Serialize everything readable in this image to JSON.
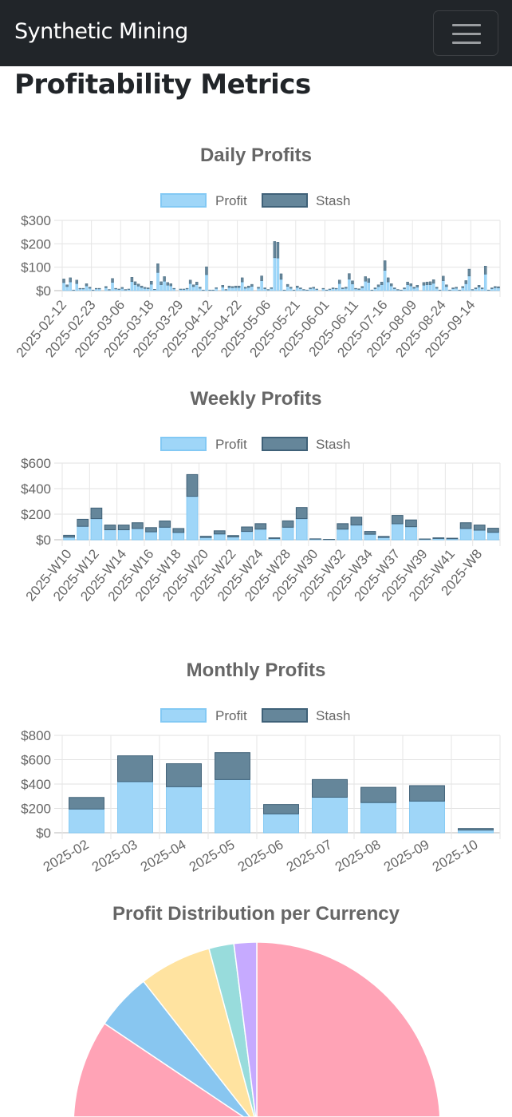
{
  "navbar": {
    "brand": "Synthetic Mining",
    "menu_icon": "hamburger-icon"
  },
  "page_title": "Profitability Metrics",
  "legend": {
    "profit": "Profit",
    "stash": "Stash"
  },
  "colors": {
    "profit_fill": "#9fd6f8",
    "profit_border": "#83c9f4",
    "stash_fill": "#65869a",
    "stash_border": "#3f6178",
    "pie": [
      "#ffa3b6",
      "#88c6f0",
      "#ffe3a0",
      "#98dcdc",
      "#c6aaff"
    ]
  },
  "chart_data": [
    {
      "type": "bar",
      "stacked": true,
      "title": "Daily Profits",
      "legend_position": "top",
      "y_ticks": [
        "$0",
        "$100",
        "$200",
        "$300"
      ],
      "ylim": [
        0,
        300
      ],
      "grid": true,
      "tick_labels": [
        "2025-02-12",
        "2025-02-23",
        "2025-03-06",
        "2025-03-18",
        "2025-03-29",
        "2025-04-12",
        "2025-04-22",
        "2025-05-06",
        "2025-05-21",
        "2025-06-01",
        "2025-06-11",
        "2025-07-16",
        "2025-08-09",
        "2025-08-24",
        "2025-09-14"
      ],
      "series": [
        {
          "name": "Profit",
          "values": [
            34,
            17,
            37,
            2,
            30,
            7,
            7,
            20,
            10,
            2,
            7,
            7,
            0,
            12,
            3,
            35,
            7,
            5,
            9,
            3,
            5,
            38,
            25,
            19,
            13,
            9,
            8,
            27,
            4,
            77,
            25,
            40,
            23,
            20,
            7,
            0,
            5,
            5,
            7,
            30,
            17,
            25,
            10,
            2,
            68,
            2,
            2,
            9,
            0,
            15,
            3,
            13,
            12,
            13,
            13,
            37,
            10,
            13,
            18,
            0,
            10,
            42,
            8,
            3,
            9,
            140,
            139,
            48,
            2,
            18,
            10,
            2,
            13,
            8,
            3,
            2,
            8,
            10,
            5,
            0,
            7,
            2,
            5,
            8,
            7,
            30,
            8,
            10,
            49,
            28,
            7,
            5,
            12,
            40,
            35,
            2,
            8,
            17,
            25,
            86,
            37,
            20,
            8,
            3,
            2,
            8,
            25,
            20,
            10,
            15,
            0,
            23,
            25,
            25,
            31,
            10,
            2,
            42,
            17,
            2,
            8,
            10,
            2,
            12,
            29,
            62,
            3,
            8,
            15,
            8,
            70,
            2,
            8,
            12,
            11
          ]
        },
        {
          "name": "Stash",
          "values": [
            16,
            8,
            18,
            1,
            15,
            3,
            3,
            10,
            5,
            1,
            3,
            3,
            0,
            6,
            2,
            17,
            3,
            2,
            5,
            2,
            2,
            19,
            13,
            9,
            7,
            5,
            4,
            13,
            2,
            38,
            13,
            20,
            12,
            10,
            3,
            0,
            2,
            2,
            3,
            15,
            8,
            12,
            5,
            1,
            34,
            1,
            1,
            4,
            0,
            8,
            2,
            7,
            6,
            7,
            7,
            18,
            5,
            7,
            9,
            0,
            5,
            21,
            4,
            2,
            4,
            70,
            68,
            24,
            1,
            9,
            5,
            1,
            7,
            4,
            2,
            1,
            4,
            5,
            2,
            0,
            3,
            1,
            2,
            4,
            3,
            15,
            4,
            5,
            24,
            14,
            3,
            3,
            6,
            20,
            17,
            1,
            4,
            8,
            12,
            42,
            18,
            10,
            4,
            2,
            1,
            4,
            12,
            10,
            5,
            8,
            0,
            12,
            12,
            13,
            16,
            5,
            1,
            20,
            8,
            1,
            4,
            5,
            1,
            6,
            14,
            30,
            2,
            4,
            8,
            4,
            35,
            1,
            4,
            6,
            6
          ]
        }
      ]
    },
    {
      "type": "bar",
      "stacked": true,
      "title": "Weekly Profits",
      "legend_position": "top",
      "y_ticks": [
        "$0",
        "$200",
        "$400",
        "$600"
      ],
      "ylim": [
        0,
        600
      ],
      "grid": true,
      "tick_labels": [
        "2025-W10",
        "2025-W12",
        "2025-W14",
        "2025-W16",
        "2025-W18",
        "2025-W20",
        "2025-W22",
        "2025-W24",
        "2025-W28",
        "2025-W30",
        "2025-W32",
        "2025-W34",
        "2025-W37",
        "2025-W39",
        "2025-W41",
        "2025-W8"
      ],
      "series": [
        {
          "name": "Profit",
          "values": [
            20,
            105,
            165,
            78,
            78,
            88,
            62,
            98,
            57,
            340,
            18,
            45,
            22,
            65,
            83,
            10,
            98,
            165,
            5,
            2,
            83,
            115,
            43,
            18,
            125,
            102,
            4,
            10,
            8,
            88,
            75,
            58
          ]
        },
        {
          "name": "Stash",
          "values": [
            15,
            55,
            83,
            37,
            37,
            45,
            33,
            49,
            31,
            170,
            9,
            25,
            11,
            35,
            43,
            5,
            50,
            87,
            2,
            1,
            43,
            62,
            22,
            8,
            65,
            53,
            2,
            5,
            4,
            45,
            40,
            32
          ]
        }
      ]
    },
    {
      "type": "bar",
      "stacked": true,
      "title": "Monthly Profits",
      "legend_position": "top",
      "y_ticks": [
        "$0",
        "$200",
        "$400",
        "$600",
        "$800"
      ],
      "ylim": [
        0,
        800
      ],
      "grid": true,
      "categories": [
        "2025-02",
        "2025-03",
        "2025-04",
        "2025-05",
        "2025-06",
        "2025-07",
        "2025-08",
        "2025-09",
        "2025-10"
      ],
      "series": [
        {
          "name": "Profit",
          "values": [
            195,
            420,
            378,
            437,
            155,
            292,
            248,
            260,
            22
          ]
        },
        {
          "name": "Stash",
          "values": [
            95,
            212,
            189,
            221,
            77,
            145,
            125,
            127,
            13
          ]
        }
      ]
    },
    {
      "type": "pie",
      "title": "Profit Distribution per Currency",
      "values_percent": [
        84.4,
        5.0,
        6.4,
        2.2,
        2.0
      ]
    }
  ]
}
